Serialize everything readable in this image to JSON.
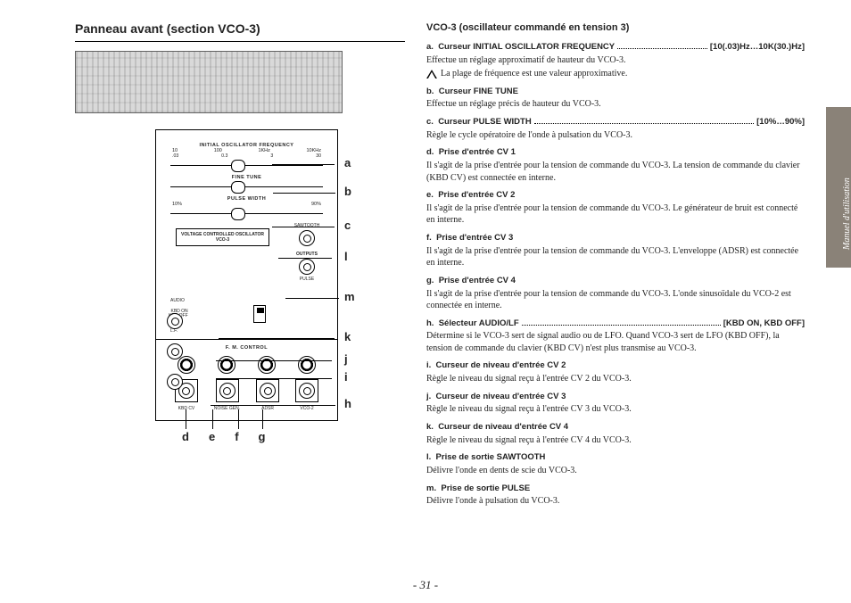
{
  "page_number": "- 31 -",
  "sidetab": "Manuel d'utilisation",
  "left": {
    "title": "Panneau avant (section VCO-3)",
    "panel": {
      "freq_label": "INITIAL  OSCILLATOR  FREQUENCY",
      "freq_top": [
        "10",
        "100",
        "1KHz",
        "10KHz"
      ],
      "freq_bot": [
        ".03",
        "0.3",
        "3",
        "30"
      ],
      "fine_tune": "FINE TUNE",
      "pw_label": "PULSE  WIDTH",
      "pw_left": "10%",
      "pw_right": "90%",
      "box": "VOLTAGE CONTROLLED OSCILLATOR VCO-3",
      "outputs": "OUTPUTS",
      "sawtooth": "SAWTOOTH",
      "pulse": "PULSE",
      "audio": "AUDIO",
      "kbd_on": "KBD ON",
      "kbd_off": "KBD OFF",
      "lf": "L.F.",
      "fm": "F. M.  CONTROL",
      "fm1": "KBD CV",
      "fm2": "NOISE GEN.",
      "fm3": "ADSR",
      "fm4": "VCO-2"
    },
    "callouts_right": [
      "a",
      "b",
      "c",
      "l",
      "m",
      "k",
      "j",
      "i",
      "h"
    ],
    "callouts_bottom": [
      "d",
      "e",
      "f",
      "g"
    ]
  },
  "right": {
    "title": "VCO-3 (oscillateur commandé en tension 3)",
    "items": [
      {
        "k": "a.",
        "lead": "Curseur INITIAL OSCILLATOR FREQUENCY",
        "dots": true,
        "range": "[10(.03)Hz…10K(30.)Hz]",
        "body": "Effectue un réglage approximatif de hauteur du VCO-3.",
        "note": "La plage de fréquence est une valeur approximative."
      },
      {
        "k": "b.",
        "lead": "Curseur FINE TUNE",
        "body": "Effectue un réglage précis de hauteur du VCO-3."
      },
      {
        "k": "c.",
        "lead": "Curseur PULSE WIDTH",
        "dots": true,
        "range": "[10%…90%]",
        "body": "Règle le cycle opératoire de l'onde à pulsation du VCO-3."
      },
      {
        "k": "d.",
        "lead": "Prise d'entrée CV 1",
        "body": "Il s'agit de la prise d'entrée pour la tension de commande du VCO-3. La tension de commande du clavier (KBD CV) est connectée en interne."
      },
      {
        "k": "e.",
        "lead": "Prise d'entrée CV 2",
        "body": "Il s'agit de la prise d'entrée pour la tension de commande du VCO-3. Le générateur de bruit est connecté en interne."
      },
      {
        "k": "f.",
        "lead": "Prise d'entrée CV 3",
        "body": "Il s'agit de la prise d'entrée pour la tension de commande du VCO-3. L'enveloppe (ADSR) est connectée en interne."
      },
      {
        "k": "g.",
        "lead": "Prise d'entrée CV 4",
        "body": "Il s'agit de la prise d'entrée pour la tension de commande du VCO-3. L'onde sinusoïdale du VCO-2 est connectée en interne."
      },
      {
        "k": "h.",
        "lead": "Sélecteur AUDIO/LF",
        "dots": true,
        "range": "[KBD ON, KBD OFF]",
        "body": "Détermine si le VCO-3 sert de signal audio ou de LFO. Quand VCO-3 sert de LFO (KBD OFF), la tension de commande du clavier (KBD CV) n'est plus transmise au VCO-3."
      },
      {
        "k": "i.",
        "lead": "Curseur de niveau d'entrée CV 2",
        "body": "Règle le niveau du signal reçu à l'entrée CV 2 du VCO-3."
      },
      {
        "k": "j.",
        "lead": "Curseur de niveau d'entrée CV 3",
        "body": "Règle le niveau du signal reçu à l'entrée CV 3 du VCO-3."
      },
      {
        "k": "k.",
        "lead": "Curseur de niveau d'entrée CV 4",
        "body": "Règle le niveau du signal reçu à l'entrée CV 4 du VCO-3."
      },
      {
        "k": "l.",
        "lead": "Prise de sortie SAWTOOTH",
        "body": "Délivre l'onde en dents de scie du VCO-3."
      },
      {
        "k": "m.",
        "lead": "Prise de sortie PULSE",
        "body": "Délivre l'onde à pulsation du VCO-3."
      }
    ]
  }
}
